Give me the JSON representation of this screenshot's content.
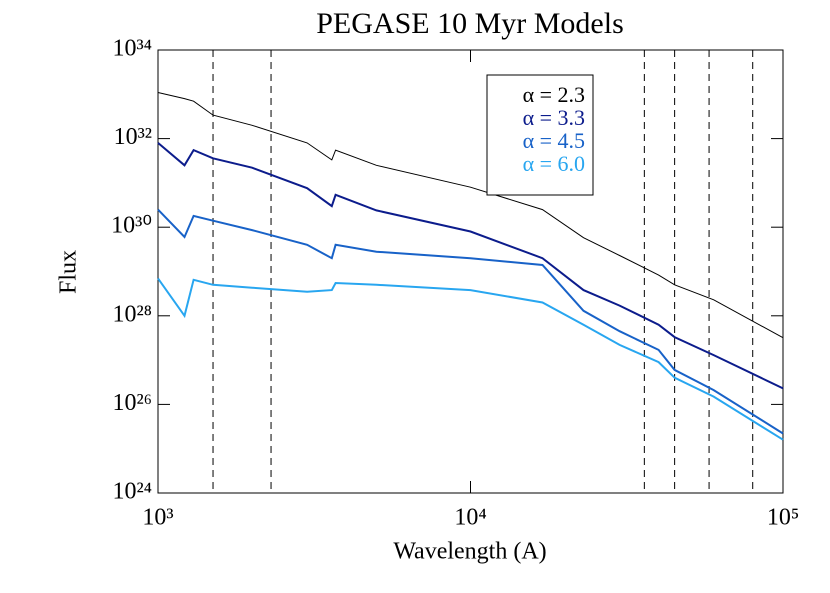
{
  "chart_data": {
    "type": "line",
    "title": "PEGASE 10 Myr Models",
    "x_label": "Wavelength (A)",
    "y_label": "Flux",
    "xlog": true,
    "ylog": true,
    "xlim": [
      1000,
      100000
    ],
    "xticks": [
      {
        "value": 1000,
        "label": "10³"
      },
      {
        "value": 10000,
        "label": "10⁴"
      },
      {
        "value": 100000,
        "label": "10⁵"
      }
    ],
    "ylim": [
      1e+24,
      1e+34
    ],
    "yticks": [
      {
        "value": 1e+24,
        "label": "10²⁴"
      },
      {
        "value": 1e+26,
        "label": "10²⁶"
      },
      {
        "value": 1e+28,
        "label": "10²⁸"
      },
      {
        "value": 1e+30,
        "label": "10³⁰"
      },
      {
        "value": 1e+32,
        "label": "10³²"
      },
      {
        "value": 1e+34,
        "label": "10³⁴"
      }
    ],
    "vlines": [
      1500,
      2300,
      36000,
      45000,
      58000,
      80000
    ],
    "legend": "top-right",
    "x": [
      1000,
      1216,
      1300,
      1500,
      2000,
      3000,
      3600,
      3700,
      5000,
      10000,
      17000,
      23000,
      30000,
      40000,
      45000,
      60000,
      100000
    ],
    "series": [
      {
        "name": "α = 2.3",
        "color": "#000000",
        "values": [
          1.1e+33,
          8e+32,
          7e+32,
          3.4e+32,
          2e+32,
          8e+31,
          3.3e+31,
          5.5e+31,
          2.5e+31,
          8e+30,
          2.5e+30,
          5.8e+29,
          2.3e+29,
          8.3e+28,
          5e+28,
          2.3e+28,
          3.2e+27
        ]
      },
      {
        "name": "α = 3.3",
        "color": "#0c1c8c",
        "values": [
          8e+31,
          2.5e+31,
          5.5e+31,
          3.6e+31,
          2.2e+31,
          7.6e+30,
          3e+30,
          5.4e+30,
          2.4e+30,
          8e+29,
          2e+29,
          3.8e+28,
          1.7e+28,
          6.3e+27,
          3.3e+27,
          1.3e+27,
          2.3e+26
        ]
      },
      {
        "name": "α = 4.5",
        "color": "#1862c8",
        "values": [
          2.5e+30,
          6e+29,
          1.8e+30,
          1.4e+30,
          8.6e+29,
          4e+29,
          2e+29,
          4e+29,
          2.8e+29,
          2e+29,
          1.4e+29,
          1.3e+28,
          4.5e+27,
          1.7e+27,
          6e+26,
          2.1e+26,
          2.2e+25
        ]
      },
      {
        "name": "α = 6.0",
        "color": "#28a6f0",
        "values": [
          7e+28,
          1e+28,
          6.5e+28,
          5e+28,
          4.3e+28,
          3.5e+28,
          3.8e+28,
          5.5e+28,
          5e+28,
          3.8e+28,
          2e+28,
          6.3e+27,
          2.2e+27,
          9e+26,
          4e+26,
          1.5e+26,
          1.6e+25
        ]
      }
    ]
  }
}
